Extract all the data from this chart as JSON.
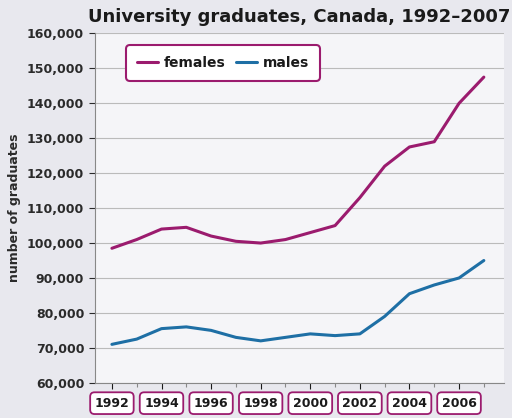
{
  "title": "University graduates, Canada, 1992–2007",
  "ylabel": "number of graduates",
  "years": [
    1992,
    1993,
    1994,
    1995,
    1996,
    1997,
    1998,
    1999,
    2000,
    2001,
    2002,
    2003,
    2004,
    2005,
    2006,
    2007
  ],
  "females": [
    98500,
    101000,
    104000,
    104500,
    102000,
    100500,
    100000,
    101000,
    103000,
    105000,
    113000,
    122000,
    127500,
    129000,
    140000,
    147500
  ],
  "males": [
    71000,
    72500,
    75500,
    76000,
    75000,
    73000,
    72000,
    73000,
    74000,
    73500,
    74000,
    79000,
    85500,
    88000,
    90000,
    95000
  ],
  "female_color": "#9B1B6E",
  "male_color": "#1E6FA5",
  "ylim": [
    60000,
    160000
  ],
  "yticks": [
    60000,
    70000,
    80000,
    90000,
    100000,
    110000,
    120000,
    130000,
    140000,
    150000,
    160000
  ],
  "xticks": [
    1992,
    1994,
    1996,
    1998,
    2000,
    2002,
    2004,
    2006
  ],
  "xlim": [
    1991.5,
    2007.5
  ],
  "background_color": "#E8E8EE",
  "plot_bg_color": "#F5F5F8",
  "legend_labels": [
    "females",
    "males"
  ],
  "line_width": 2.2,
  "title_fontsize": 13,
  "axis_label_fontsize": 9,
  "tick_fontsize": 9,
  "legend_fontsize": 10
}
